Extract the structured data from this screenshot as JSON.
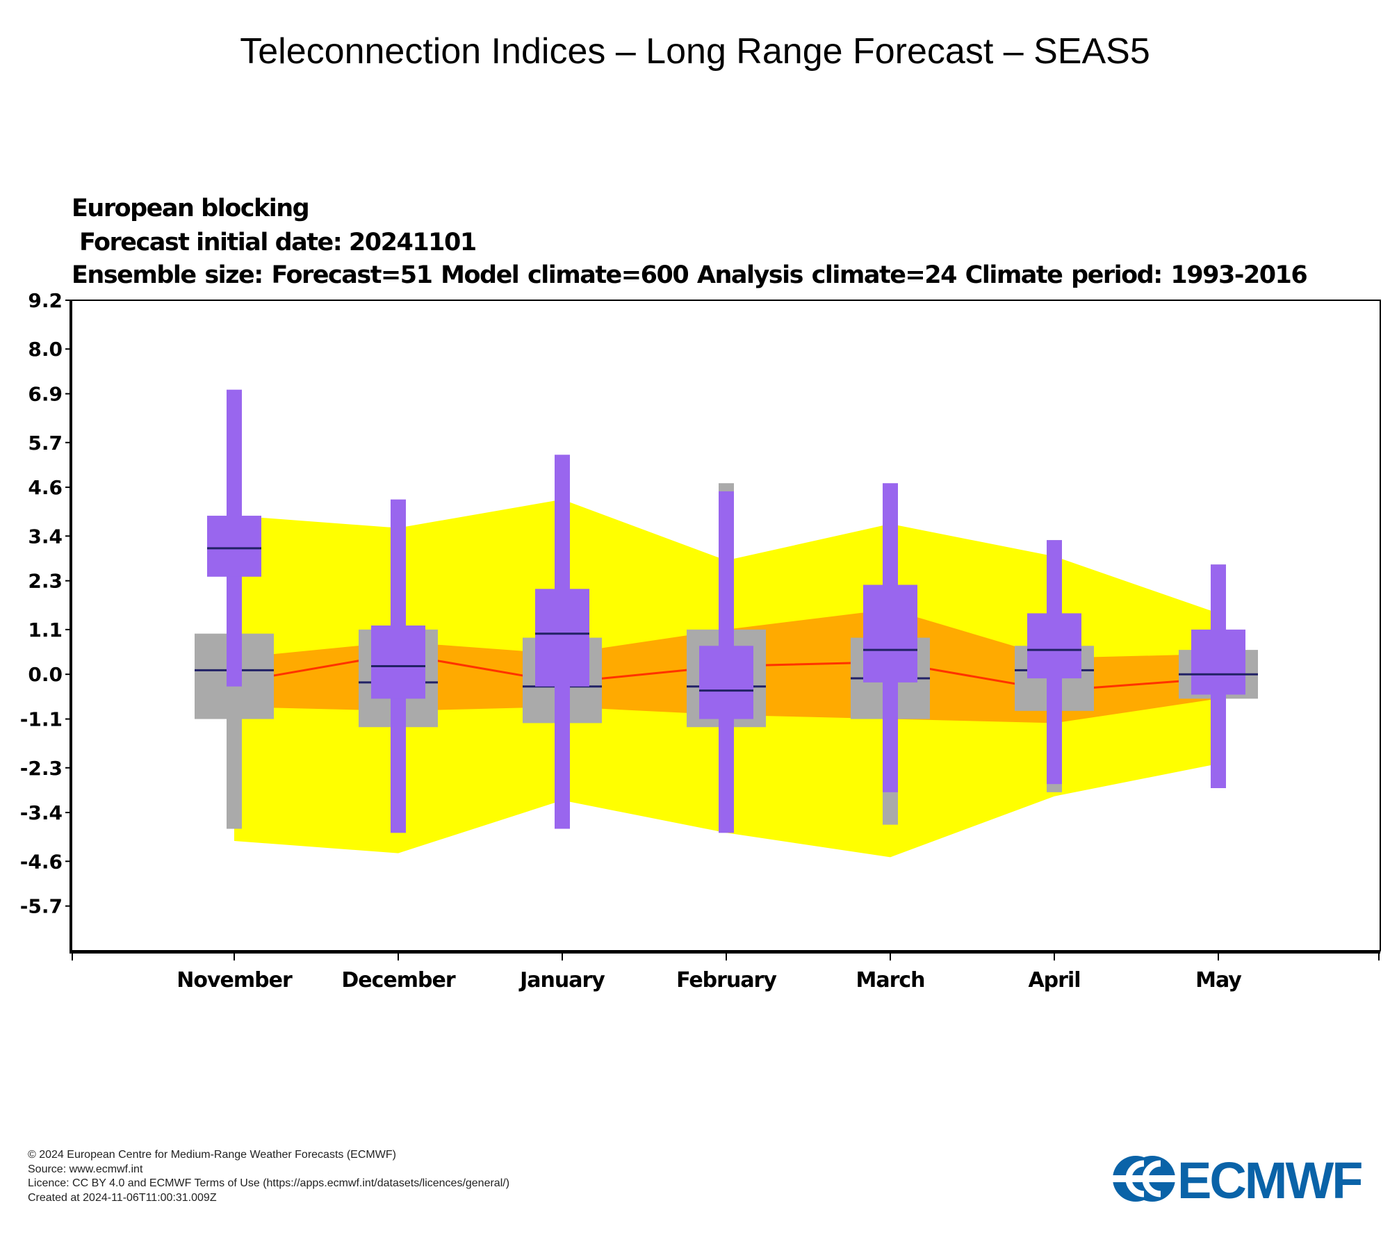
{
  "page": {
    "title": "Teleconnection Indices – Long Range Forecast – SEAS5"
  },
  "chart_data": {
    "type": "box",
    "title": "European blocking",
    "subtitle_lines": [
      "Forecast initial date: 20241101",
      "Ensemble size: Forecast=51 Model climate=600 Analysis climate=24    Climate period: 1993-2016"
    ],
    "categories": [
      "November",
      "December",
      "January",
      "February",
      "March",
      "April",
      "May"
    ],
    "y_ticks": [
      "9.2",
      "8.0",
      "6.9",
      "5.7",
      "4.6",
      "3.4",
      "2.3",
      "1.1",
      "0.0",
      "-1.1",
      "-2.3",
      "-3.4",
      "-4.6",
      "-5.7"
    ],
    "ylim": [
      -6.8,
      9.2
    ],
    "colors": {
      "forecast": "#9966ee",
      "model_climate": "#aaaaaa",
      "analysis_outer": "#ffff00",
      "analysis_inner": "#ffaa00",
      "analysis_median": "#ff3300",
      "median_bar": "#222266"
    },
    "analysis_climate": {
      "max": [
        3.9,
        3.6,
        4.3,
        2.8,
        3.7,
        2.9,
        1.5
      ],
      "p75": [
        0.4,
        0.8,
        0.5,
        1.1,
        1.6,
        0.4,
        0.5
      ],
      "median": [
        -0.2,
        0.5,
        -0.2,
        0.2,
        0.3,
        -0.4,
        -0.1
      ],
      "p25": [
        -0.8,
        -0.9,
        -0.8,
        -1.0,
        -1.1,
        -1.2,
        -0.6
      ],
      "min": [
        -4.1,
        -4.4,
        -3.1,
        -3.9,
        -4.5,
        -3.0,
        -2.2
      ]
    },
    "model_climate": {
      "min": [
        -3.8,
        -3.6,
        -3.6,
        -3.8,
        -3.7,
        -2.9,
        -2.4
      ],
      "p10": [
        -1.1,
        -1.3,
        -1.2,
        -1.3,
        -1.1,
        -0.9,
        -0.6
      ],
      "median": [
        0.1,
        -0.2,
        -0.3,
        -0.3,
        -0.1,
        0.1,
        0.0
      ],
      "p90": [
        1.0,
        1.1,
        0.9,
        1.1,
        0.9,
        0.7,
        0.6
      ],
      "max": [
        2.4,
        4.2,
        4.5,
        4.7,
        4.1,
        3.3,
        2.7
      ]
    },
    "forecast": {
      "min": [
        -0.3,
        -3.9,
        -3.8,
        -3.9,
        -2.9,
        -2.7,
        -2.8
      ],
      "p25": [
        2.4,
        -0.6,
        -0.3,
        -1.1,
        -0.2,
        -0.1,
        -0.5
      ],
      "median": [
        3.1,
        0.2,
        1.0,
        -0.4,
        0.6,
        0.6,
        0.0
      ],
      "p75": [
        3.9,
        1.2,
        2.1,
        0.7,
        2.2,
        1.5,
        1.1
      ],
      "max": [
        7.0,
        4.3,
        5.4,
        4.5,
        4.7,
        3.3,
        2.7
      ]
    }
  },
  "footer": {
    "lines": [
      "© 2024 European Centre for Medium-Range Weather Forecasts (ECMWF)",
      "Source: www.ecmwf.int",
      "Licence: CC BY 4.0 and ECMWF Terms of Use (https://apps.ecmwf.int/datasets/licences/general/)",
      "Created at 2024-11-06T11:00:31.009Z"
    ],
    "logo_text": "ECMWF",
    "logo_color": "#0a63a8"
  }
}
